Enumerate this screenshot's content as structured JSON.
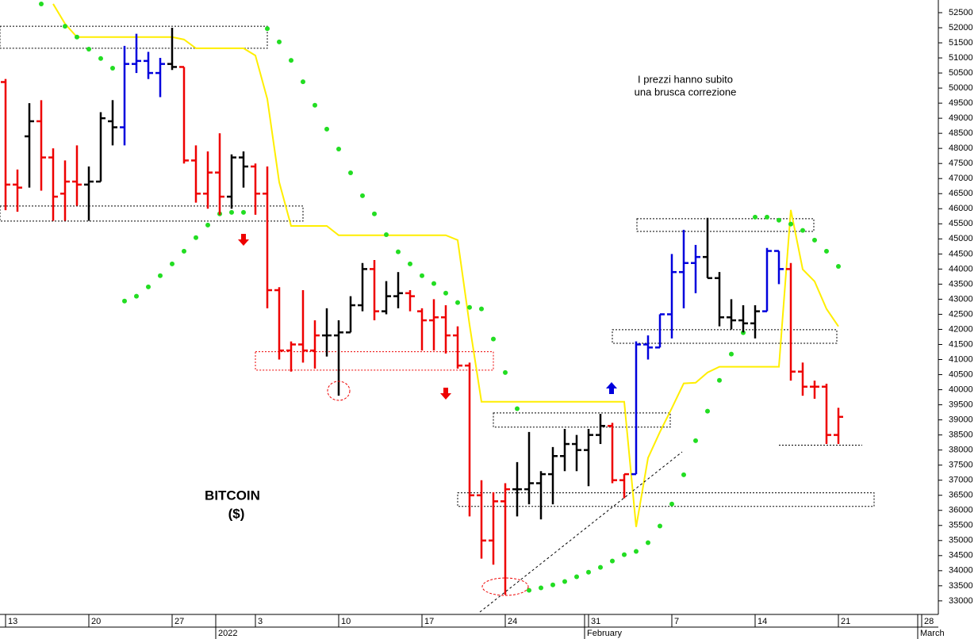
{
  "chart_data": {
    "type": "ohlc",
    "title": "BITCOIN",
    "subtitle": "($)",
    "annotations": [
      "I prezzi hanno subito",
      "una brusca correzione"
    ],
    "annotation_color": "#ee0000",
    "categories": [
      "13",
      null,
      null,
      null,
      null,
      null,
      null,
      "20",
      null,
      null,
      null,
      null,
      null,
      null,
      "27",
      null,
      null,
      null,
      null,
      null,
      null,
      "3",
      null,
      null,
      null,
      null,
      null,
      null,
      "10",
      null,
      null,
      null,
      null,
      null,
      null,
      "17",
      null,
      null,
      null,
      null,
      null,
      null,
      "24",
      null,
      null,
      null,
      null,
      null,
      null,
      "31",
      null,
      null,
      null,
      null,
      null,
      null,
      "7",
      null,
      null,
      null,
      null,
      null,
      null,
      "14",
      null,
      null,
      null,
      null,
      null,
      null,
      "21",
      null,
      null,
      null,
      null,
      null,
      null,
      "28",
      null
    ],
    "months": [
      null,
      null,
      null,
      null,
      null,
      null,
      null,
      null,
      null,
      null,
      null,
      null,
      null,
      null,
      null,
      null,
      null,
      null,
      null,
      "2022",
      null,
      null,
      null,
      null,
      null,
      null,
      null,
      null,
      null,
      null,
      null,
      null,
      null,
      null,
      null,
      null,
      null,
      null,
      null,
      null,
      null,
      null,
      null,
      null,
      null,
      null,
      null,
      null,
      null,
      null,
      "February",
      null,
      null,
      null,
      null,
      null,
      null,
      null,
      null,
      null,
      null,
      null,
      null,
      null,
      null,
      null,
      null,
      null,
      null,
      null,
      null,
      null,
      null,
      null,
      null,
      null,
      null,
      null,
      "March"
    ],
    "open": [
      50200,
      46800,
      48400,
      48900,
      47700,
      46500,
      46900,
      46800,
      46900,
      48900,
      48700,
      50800,
      50900,
      50500,
      50800,
      50700,
      47600,
      46500,
      47200,
      46400,
      47700,
      47400,
      46500,
      43300,
      41300,
      41500,
      41300,
      41800,
      41800,
      41900,
      42800,
      44000,
      42600,
      43100,
      43200,
      42600,
      42300,
      42400,
      41800,
      40800,
      36500,
      35000,
      36300,
      36700,
      36700,
      36900,
      37200,
      37800,
      38200,
      38000,
      38500,
      38800,
      37000,
      37200,
      41500,
      41400,
      42500,
      43900,
      44200,
      44400,
      43700,
      42400,
      42300,
      42200,
      42600,
      44600,
      44000,
      40600,
      40100,
      40100,
      38500,
      null,
      null,
      null,
      null,
      null,
      null,
      null,
      null
    ],
    "high": [
      50300,
      47300,
      49500,
      49600,
      48000,
      47600,
      48100,
      47400,
      49200,
      49600,
      51400,
      51800,
      51200,
      51000,
      52000,
      50700,
      48100,
      47900,
      48500,
      47800,
      47900,
      47500,
      47400,
      43400,
      41600,
      43300,
      42300,
      42700,
      42300,
      43100,
      44200,
      44300,
      43600,
      43900,
      43300,
      42700,
      43000,
      42800,
      42100,
      40900,
      37000,
      36600,
      36900,
      37600,
      38600,
      37300,
      38100,
      38700,
      38500,
      38700,
      39200,
      38900,
      37200,
      41600,
      41800,
      42500,
      44500,
      45300,
      44800,
      45700,
      43900,
      43000,
      42800,
      42800,
      44700,
      44600,
      44200,
      40900,
      40300,
      40200,
      39400,
      null,
      null,
      null,
      null,
      null,
      null,
      null,
      null
    ],
    "low": [
      45950,
      45900,
      46700,
      46600,
      45600,
      45600,
      46100,
      45600,
      46900,
      48100,
      48100,
      50500,
      50300,
      49700,
      50600,
      47500,
      46200,
      46000,
      45800,
      46000,
      46700,
      45800,
      42700,
      41000,
      40600,
      40900,
      40700,
      41100,
      39800,
      41900,
      42600,
      42300,
      42500,
      42700,
      42600,
      41300,
      41300,
      41200,
      40700,
      35800,
      34400,
      34200,
      33200,
      35800,
      36200,
      35700,
      36200,
      37300,
      37300,
      36800,
      38200,
      36900,
      36400,
      37200,
      41000,
      41400,
      41700,
      42700,
      43200,
      43700,
      42100,
      42000,
      41900,
      41700,
      42600,
      43500,
      40300,
      39800,
      39700,
      38200,
      38200,
      null,
      null,
      null,
      null,
      null,
      null,
      null,
      null
    ],
    "close": [
      46800,
      46700,
      48900,
      47700,
      46400,
      46900,
      46800,
      46900,
      49000,
      48700,
      50800,
      50900,
      50500,
      50800,
      50700,
      47600,
      46500,
      47200,
      46400,
      47700,
      47400,
      46500,
      43300,
      41300,
      41500,
      41300,
      41800,
      41800,
      41900,
      42800,
      44000,
      42600,
      43100,
      43200,
      43100,
      42300,
      42400,
      41800,
      40800,
      36500,
      35000,
      36300,
      36700,
      36700,
      36900,
      37200,
      37800,
      38200,
      38000,
      38500,
      38800,
      37000,
      37200,
      41500,
      41400,
      42500,
      43900,
      44200,
      44400,
      43700,
      42400,
      42300,
      42200,
      42600,
      44600,
      44000,
      40600,
      40100,
      40100,
      38500,
      39100,
      null,
      null,
      null,
      null,
      null,
      null,
      null,
      null
    ],
    "bar_colors": [
      "#ee0000",
      "#ee0000",
      "#000000",
      "#ee0000",
      "#ee0000",
      "#ee0000",
      "#ee0000",
      "#000000",
      "#000000",
      "#000000",
      "#0000dd",
      "#0000dd",
      "#0000dd",
      "#0000dd",
      "#000000",
      "#ee0000",
      "#ee0000",
      "#ee0000",
      "#ee0000",
      "#000000",
      "#000000",
      "#ee0000",
      "#ee0000",
      "#ee0000",
      "#ee0000",
      "#ee0000",
      "#ee0000",
      "#000000",
      "#000000",
      "#000000",
      "#000000",
      "#ee0000",
      "#000000",
      "#000000",
      "#ee0000",
      "#ee0000",
      "#ee0000",
      "#ee0000",
      "#ee0000",
      "#ee0000",
      "#ee0000",
      "#ee0000",
      "#ee0000",
      "#000000",
      "#000000",
      "#000000",
      "#000000",
      "#000000",
      "#000000",
      "#000000",
      "#000000",
      "#ee0000",
      "#ee0000",
      "#0000dd",
      "#0000dd",
      "#0000dd",
      "#0000dd",
      "#0000dd",
      "#0000dd",
      "#000000",
      "#000000",
      "#000000",
      "#000000",
      "#000000",
      "#0000dd",
      "#0000dd",
      "#ee0000",
      "#ee0000",
      "#ee0000",
      "#ee0000",
      "#ee0000",
      null,
      null,
      null,
      null,
      null,
      null,
      null,
      null
    ],
    "overlays": [
      {
        "kind": "line",
        "color": "#ffee00",
        "values": [
          null,
          null,
          null,
          null,
          52790,
          52130,
          51690,
          51690,
          51690,
          51690,
          51690,
          51690,
          51690,
          51690,
          51690,
          51610,
          51320,
          51320,
          51320,
          51320,
          51320,
          51080,
          49640,
          46880,
          45430,
          45430,
          45430,
          45430,
          45120,
          45120,
          45120,
          45120,
          45120,
          45120,
          45120,
          45120,
          45120,
          45120,
          44960,
          42150,
          39600,
          39600,
          39600,
          39600,
          39600,
          39600,
          39600,
          39600,
          39600,
          39600,
          39600,
          39600,
          39600,
          35450,
          37740,
          38600,
          39390,
          40210,
          40230,
          40570,
          40760,
          40760,
          40760,
          40760,
          40760,
          40760,
          45960,
          43990,
          43590,
          42680,
          42100,
          null,
          null,
          null,
          null,
          null,
          null,
          null,
          null
        ]
      },
      {
        "kind": "dots",
        "color": "#22dd22",
        "values": [
          null,
          null,
          null,
          52790,
          null,
          52050,
          51690,
          51290,
          50980,
          50660,
          42940,
          43100,
          43410,
          43780,
          44170,
          44590,
          45040,
          45460,
          45830,
          45880,
          45880,
          null,
          51970,
          51530,
          50920,
          50210,
          49430,
          48640,
          47980,
          47190,
          46430,
          45830,
          45140,
          44570,
          44170,
          43780,
          43520,
          43200,
          42890,
          42730,
          42680,
          41680,
          40570,
          39370,
          33350,
          33430,
          33530,
          33640,
          33800,
          33950,
          34110,
          34320,
          34530,
          34640,
          34930,
          35480,
          36210,
          37180,
          38310,
          39290,
          40310,
          41180,
          41890,
          45720,
          45720,
          45620,
          45490,
          45280,
          44960,
          44590,
          44090,
          null,
          null,
          null,
          null,
          null,
          null,
          null,
          null
        ]
      }
    ],
    "zones": [
      {
        "low": 51320,
        "high": 52050
      },
      {
        "low": 45590,
        "high": 46090
      },
      {
        "low": 40650,
        "high": 41260
      },
      {
        "low": 45250,
        "high": 45670
      },
      {
        "low": 41540,
        "high": 41990
      },
      {
        "low": 38760,
        "high": 39230
      },
      {
        "low": 36130,
        "high": 36580
      }
    ],
    "levels": [
      38160
    ],
    "ylim": [
      32550,
      52920
    ],
    "yticks": [
      33000,
      33500,
      34000,
      34500,
      35000,
      35500,
      36000,
      36500,
      37000,
      37500,
      38000,
      38500,
      39000,
      39500,
      40000,
      40500,
      41000,
      41500,
      42000,
      42500,
      43000,
      43500,
      44000,
      44500,
      45000,
      45500,
      46000,
      46500,
      47000,
      47500,
      48000,
      48500,
      49000,
      49500,
      50000,
      50500,
      51000,
      51500,
      52000,
      52500
    ],
    "y_axis_side": "right",
    "grid": false
  }
}
